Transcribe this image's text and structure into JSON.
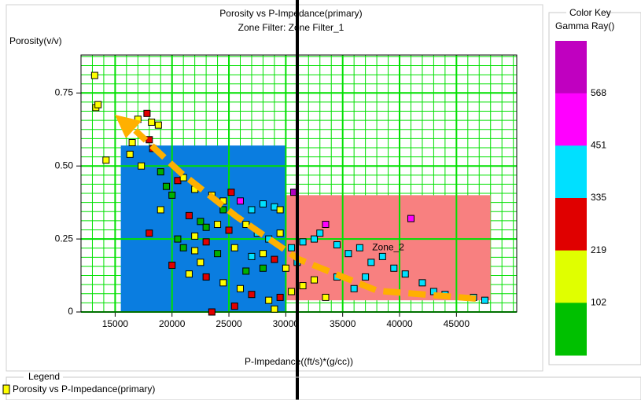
{
  "chart_data": {
    "type": "scatter",
    "title": "Porosity vs P-Impedance(primary)",
    "subtitle": "Zone Filter: Zone Filter_1",
    "x_label": "P-Impedance((ft/s)*(g/cc))",
    "y_label": "Porosity(v/v)",
    "xlim": [
      12000,
      50300
    ],
    "ylim": [
      0,
      0.88
    ],
    "xticks": [
      15000,
      20000,
      25000,
      30000,
      35000,
      40000,
      45000
    ],
    "yticks": [
      0,
      0.25,
      {
        "value": 0.5,
        "label": "0.50"
      },
      0.75
    ],
    "grid": true,
    "grid_color": "#00e000",
    "grid_step": [
      1000,
      0.03125
    ],
    "zones": [
      {
        "xrange": [
          15500,
          30000
        ],
        "yrange": [
          0,
          0.57
        ],
        "color": "#0a7de0"
      },
      {
        "xrange": [
          30000,
          48000
        ],
        "yrange": [
          0.04,
          0.4
        ],
        "color": "#f88080",
        "label": "Zone_2"
      }
    ],
    "series": [
      {
        "name": "Porosity vs P-Impedance(primary)",
        "color": "#ffff00",
        "x": [
          13200,
          13300,
          13500,
          14200,
          17000,
          17800,
          18200,
          18800,
          16500,
          18000,
          18300,
          16300,
          17300,
          19000,
          20500,
          21000,
          19500,
          22000,
          20000,
          23500,
          24500,
          25200,
          26000,
          27000,
          28000,
          29000,
          29500,
          30700,
          19000,
          21500,
          22500,
          23000,
          24000,
          25000,
          26500,
          27500,
          28500,
          29500,
          18000,
          20500,
          21000,
          22000,
          23000,
          24000,
          25500,
          27000,
          28000,
          29000,
          30500,
          31500,
          32500,
          33500,
          33000,
          34500,
          35500,
          36500,
          37500,
          38500,
          39500,
          40500,
          41000,
          42000,
          43000,
          44000,
          46500,
          47500,
          20000,
          21500,
          23000,
          24500,
          26000,
          27000,
          28500,
          29500,
          30500,
          31500,
          32500,
          33500,
          34500,
          36000,
          37000,
          25500,
          23500,
          28000,
          30000,
          22500,
          26500,
          31000,
          29000,
          22000,
          24500
        ],
        "values": [
          0.81,
          0.7,
          0.71,
          0.52,
          0.66,
          0.68,
          0.65,
          0.64,
          0.58,
          0.59,
          0.56,
          0.54,
          0.5,
          0.48,
          0.45,
          0.46,
          0.43,
          0.42,
          0.4,
          0.4,
          0.38,
          0.41,
          0.38,
          0.35,
          0.37,
          0.36,
          0.35,
          0.41,
          0.35,
          0.33,
          0.31,
          0.29,
          0.3,
          0.28,
          0.3,
          0.27,
          0.25,
          0.27,
          0.27,
          0.25,
          0.22,
          0.21,
          0.24,
          0.2,
          0.22,
          0.19,
          0.2,
          0.18,
          0.22,
          0.24,
          0.25,
          0.3,
          0.27,
          0.23,
          0.2,
          0.22,
          0.17,
          0.19,
          0.15,
          0.13,
          0.32,
          0.1,
          0.07,
          0.06,
          0.05,
          0.04,
          0.16,
          0.13,
          0.12,
          0.1,
          0.08,
          0.06,
          0.04,
          0.05,
          0.07,
          0.09,
          0.11,
          0.05,
          0.12,
          0.08,
          0.12,
          0.02,
          0.0,
          0.15,
          0.15,
          0.17,
          0.14,
          0.17,
          0.01,
          0.26,
          0.35
        ],
        "point_colors": [
          "#ffff00",
          "#ffff00",
          "#ffff00",
          "#ffff00",
          "#ffff00",
          "#e00000",
          "#ffff00",
          "#ffff00",
          "#ffff00",
          "#e00000",
          "#e00000",
          "#ffff00",
          "#ffff00",
          "#00b000",
          "#e00000",
          "#ffff00",
          "#00b000",
          "#ffff00",
          "#00b000",
          "#ffff00",
          "#ffff00",
          "#e00000",
          "#ff00ff",
          "#00e0ff",
          "#00e0ff",
          "#00e0ff",
          "#ffff00",
          "#b000c0",
          "#ffff00",
          "#e00000",
          "#00b000",
          "#00b000",
          "#ffff00",
          "#e00000",
          "#ffff00",
          "#00e0ff",
          "#00e0ff",
          "#ffff00",
          "#e00000",
          "#00b000",
          "#00b000",
          "#ffff00",
          "#e00000",
          "#00b000",
          "#ffff00",
          "#00e0ff",
          "#ffff00",
          "#e00000",
          "#00e0ff",
          "#00e0ff",
          "#00e0ff",
          "#ff00ff",
          "#00e0ff",
          "#00e0ff",
          "#00e0ff",
          "#00e0ff",
          "#00e0ff",
          "#00e0ff",
          "#00e0ff",
          "#00e0ff",
          "#ff00ff",
          "#00e0ff",
          "#00e0ff",
          "#00e0ff",
          "#00e0ff",
          "#00e0ff",
          "#e00000",
          "#ffff00",
          "#e00000",
          "#ffff00",
          "#ffff00",
          "#e00000",
          "#ffff00",
          "#e00000",
          "#ffff00",
          "#ffff00",
          "#ffff00",
          "#ffff00",
          "#00e0ff",
          "#00e0ff",
          "#00e0ff",
          "#e00000",
          "#e00000",
          "#00b000",
          "#ffff00",
          "#ffff00",
          "#00b000",
          "#00e0ff",
          "#ffff00",
          "#ffff00",
          "#00b000"
        ]
      }
    ],
    "legend_title": "Legend",
    "color_key": {
      "title": "Color Key",
      "subtitle": "Gamma Ray()",
      "labels": [
        568,
        451,
        335,
        219,
        102
      ],
      "colors": [
        "#c000c0",
        "#ff00ff",
        "#00e0ff",
        "#e00000",
        "#e0ff00",
        "#00c000"
      ]
    }
  }
}
